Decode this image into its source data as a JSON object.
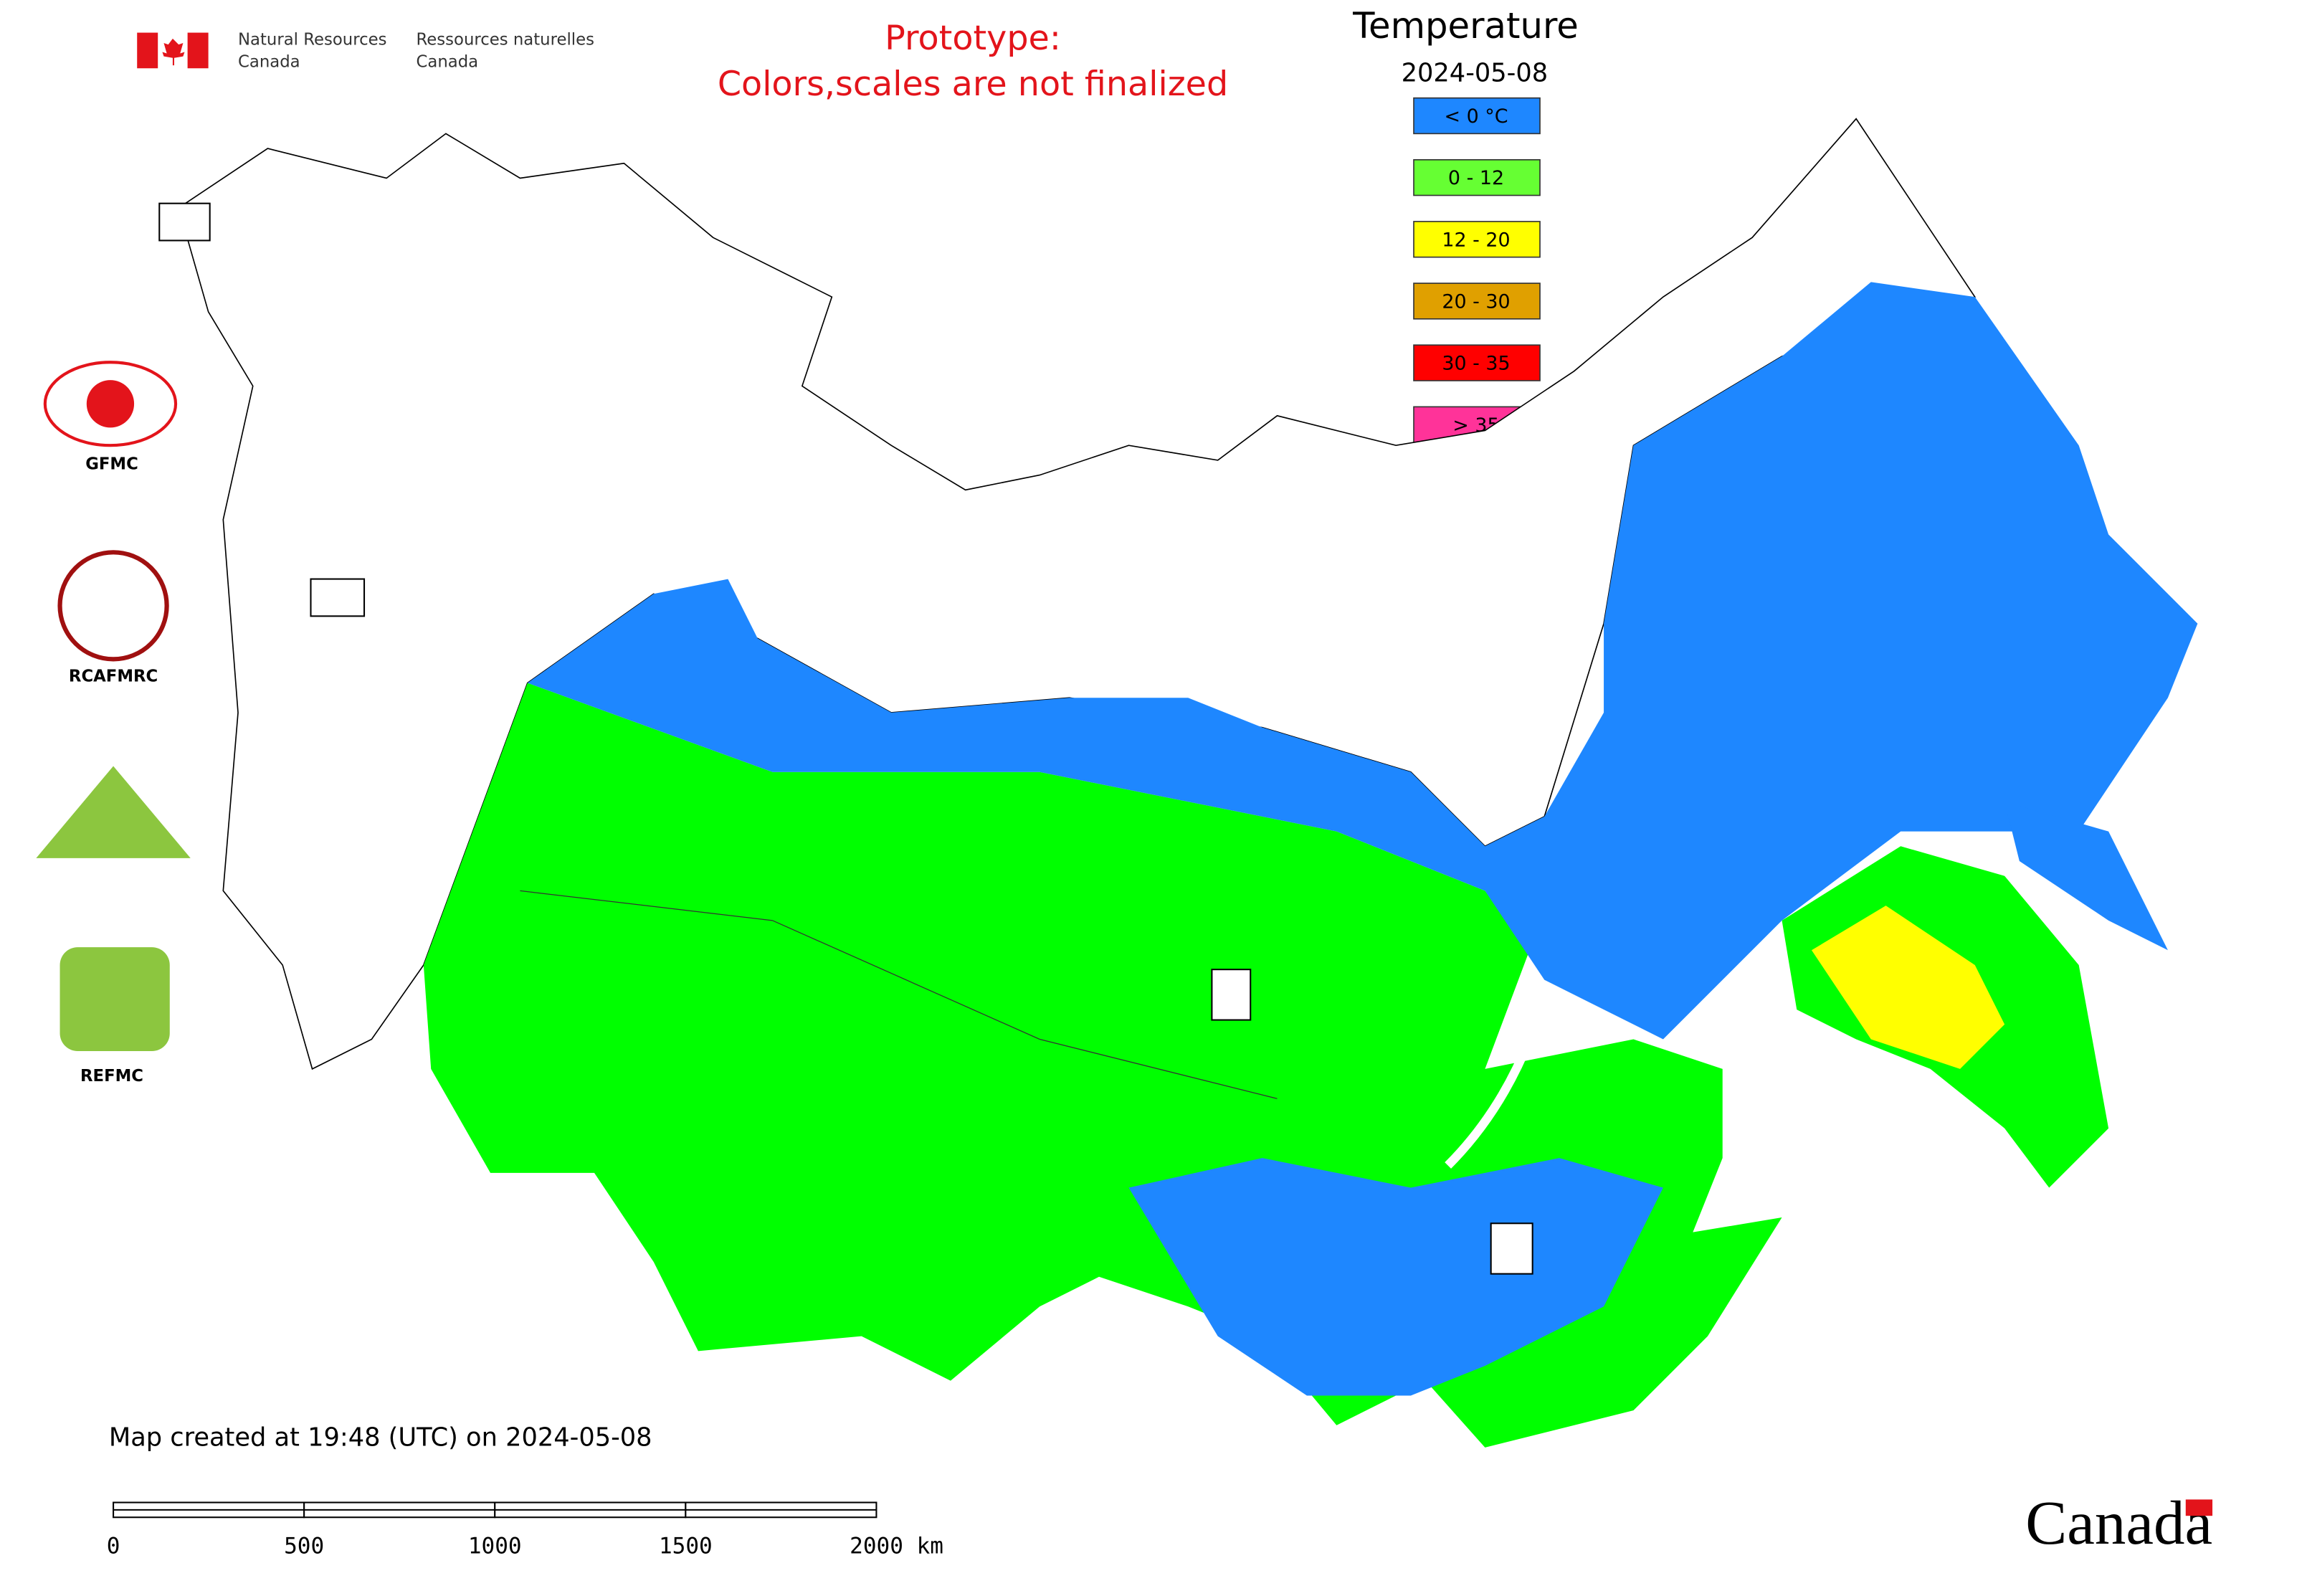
{
  "header": {
    "department_en": "Natural Resources",
    "country_en": "Canada",
    "department_fr": "Ressources naturelles",
    "country_fr": "Canada"
  },
  "notice": {
    "line1": "Prototype:",
    "line2": "Colors,scales are not finalized"
  },
  "legend": {
    "title": "Temperature",
    "date": "2024-05-08",
    "items": [
      {
        "label": "< 0 °C",
        "color": "#1e87ff"
      },
      {
        "label": "0 - 12",
        "color": "#66ff33"
      },
      {
        "label": "12 - 20",
        "color": "#ffff00"
      },
      {
        "label": "20 - 30",
        "color": "#e0a000"
      },
      {
        "label": "30 - 35",
        "color": "#ff0000"
      },
      {
        "label": "> 35",
        "color": "#ff3399"
      }
    ]
  },
  "logos": [
    "GFMC",
    "RCAFMRC",
    "REFMC"
  ],
  "footer": "Map created at 19:48 (UTC) on 2024-05-08",
  "scale_bar": [
    "0",
    "500",
    "1000",
    "1500",
    "2000 km"
  ],
  "wordmark": "Canada"
}
